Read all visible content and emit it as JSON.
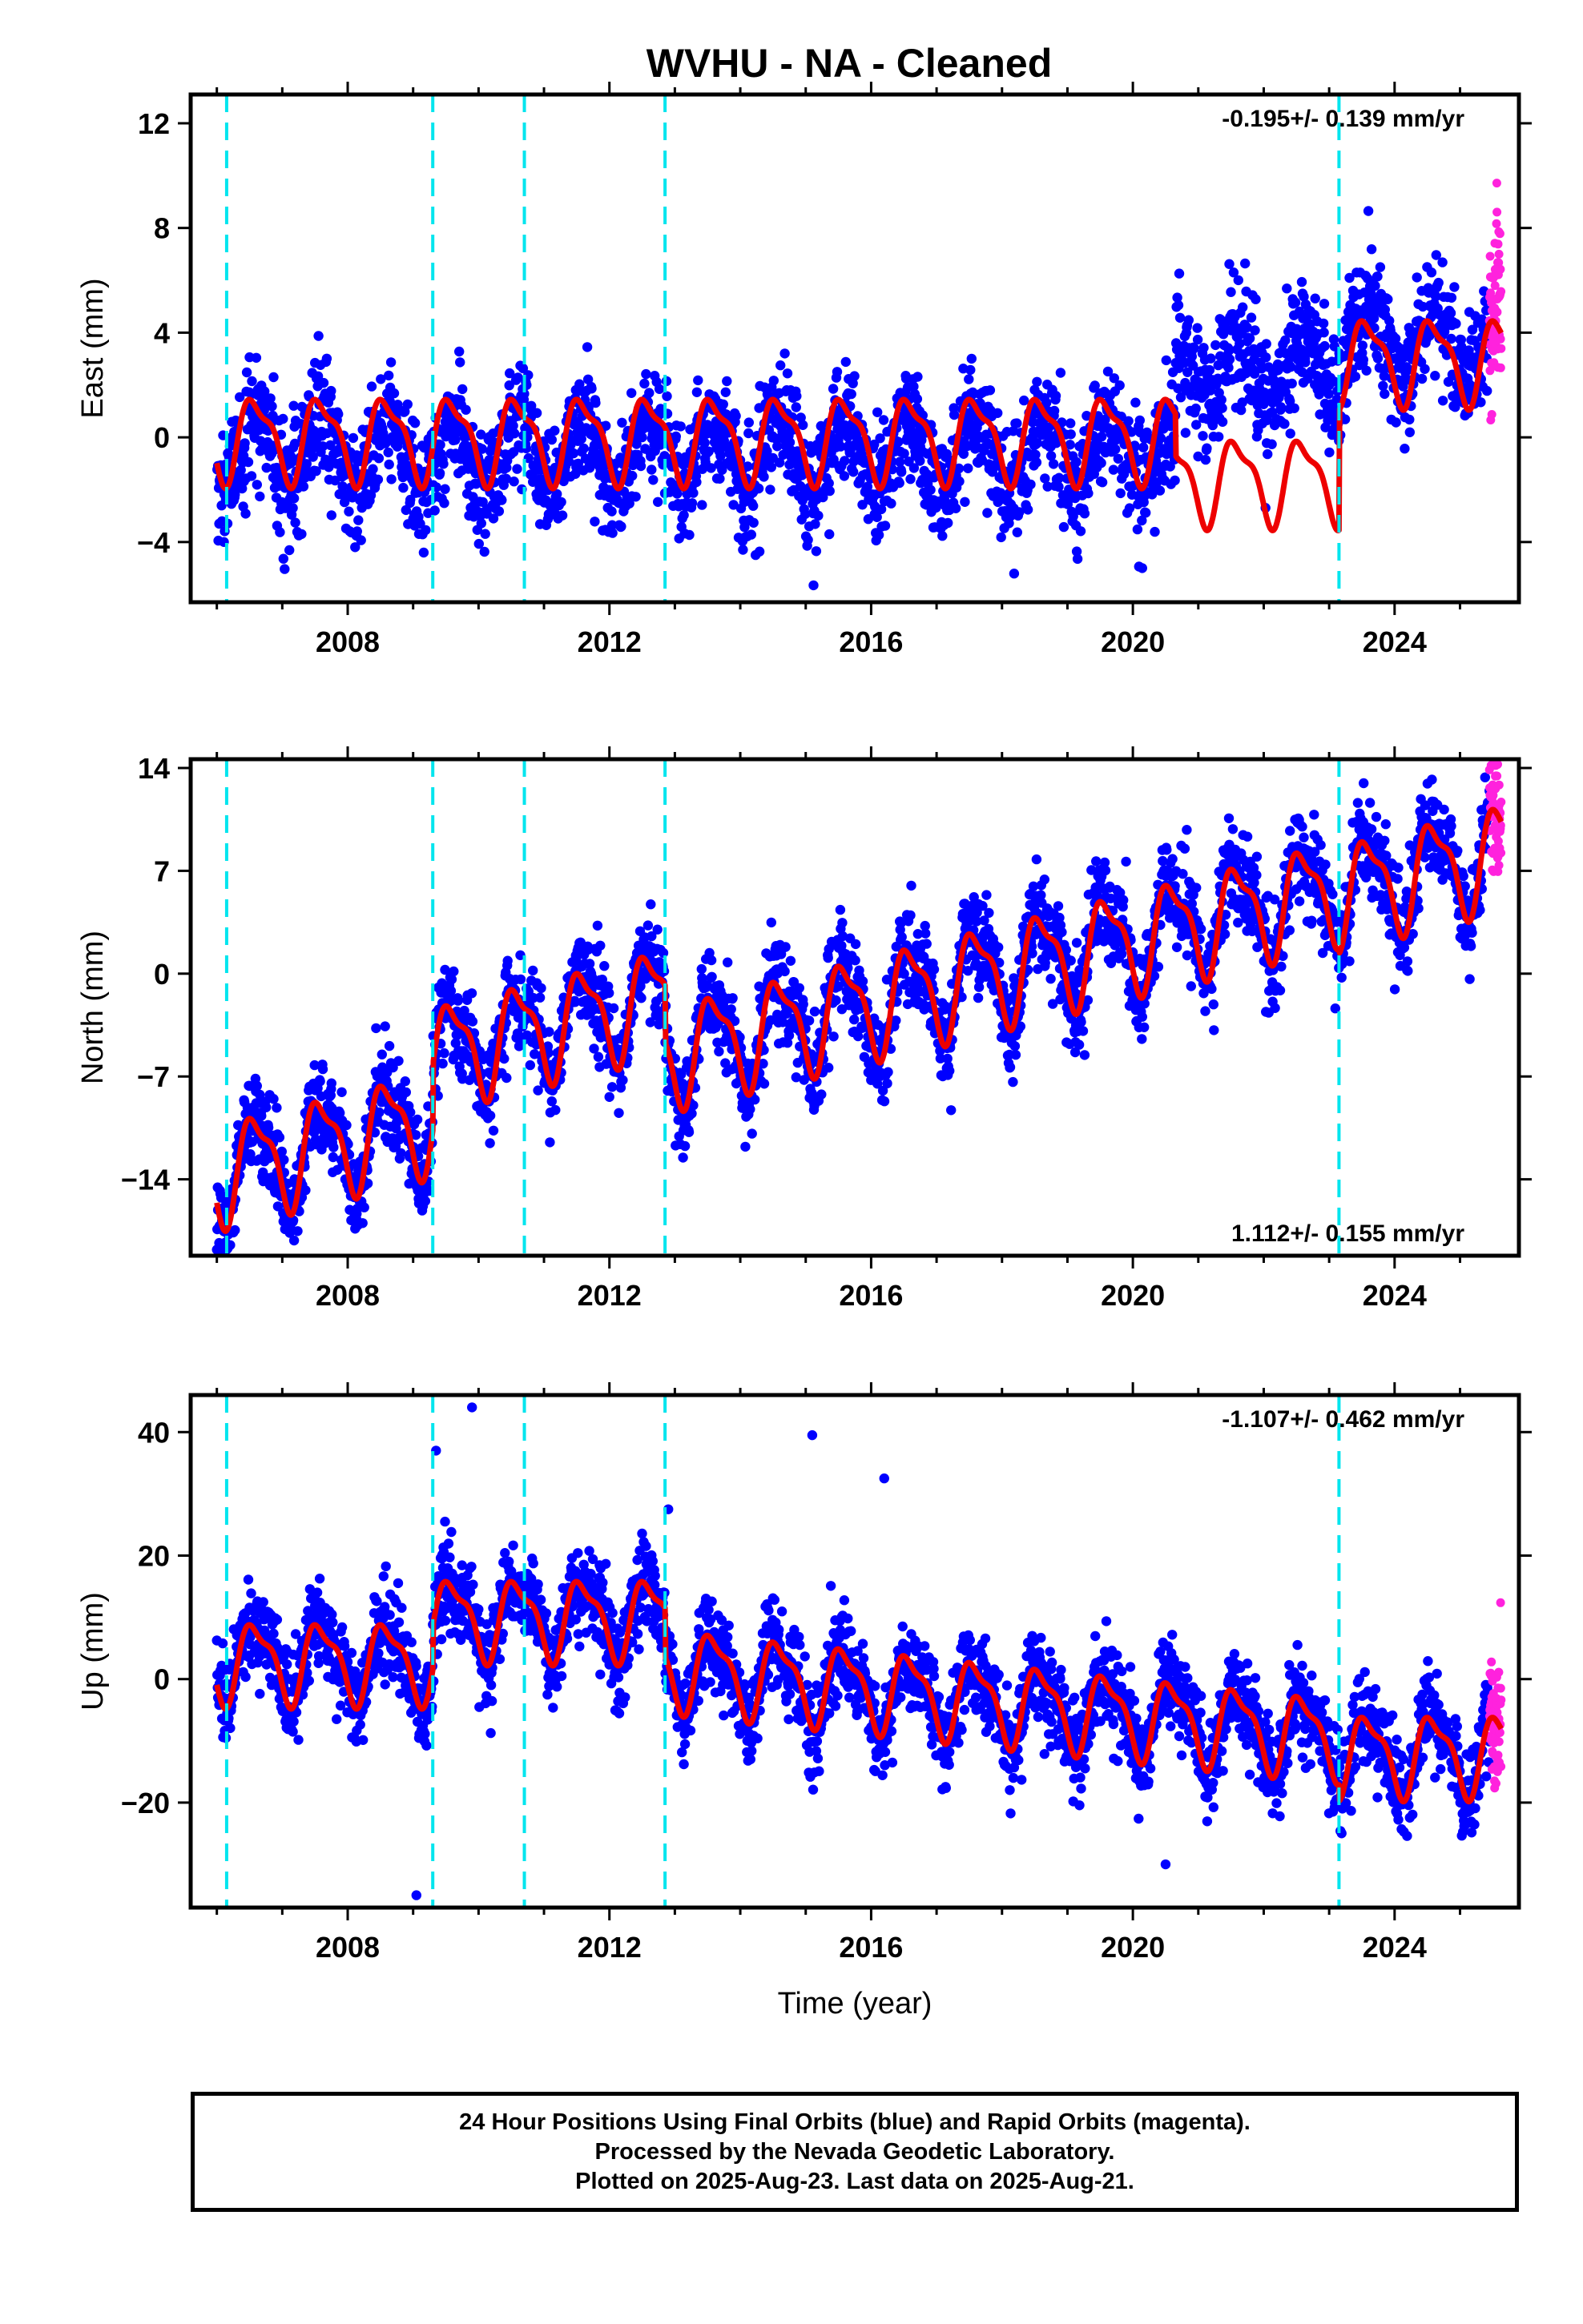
{
  "title": "WVHU  - NA - Cleaned",
  "footer": {
    "line1": "24 Hour Positions Using Final Orbits (blue) and Rapid Orbits (magenta).",
    "line2": "Processed by the Nevada Geodetic Laboratory.",
    "line3": "Plotted on 2025-Aug-23. Last data on 2025-Aug-21."
  },
  "colors": {
    "final_orbits": "#0000ff",
    "rapid_orbits": "#ff22dd",
    "model_fit": "#ee0000",
    "equipment_change": "#00e5ee",
    "axes": "#000000"
  },
  "chart_data": [
    {
      "type": "scatter",
      "component": "East",
      "ylabel": "East (mm)",
      "xlabel": "",
      "xlim": [
        2005.6,
        2025.9
      ],
      "ylim": [
        -6.3,
        13.1
      ],
      "yticks": [
        -4,
        0,
        4,
        8,
        12
      ],
      "xticks": [
        2008,
        2012,
        2016,
        2020,
        2024
      ],
      "rate_label": "-0.195+/- 0.139 mm/yr",
      "rate_position": "top-right",
      "equipment_change_epochs": [
        2006.15,
        2009.3,
        2010.7,
        2012.85,
        2023.15
      ],
      "final_orbit_span": [
        2006.0,
        2025.45
      ],
      "rapid_orbit_span": [
        2025.45,
        2025.63
      ],
      "fit_model": {
        "segments": [
          {
            "start": 2006.0,
            "end": 2020.65,
            "offset": 0.0,
            "trend": 0.0
          },
          {
            "start": 2020.65,
            "end": 2023.15,
            "offset": -1.6,
            "trend": 0.0
          },
          {
            "start": 2023.15,
            "end": 2025.63,
            "offset": 3.0,
            "trend": 0.0
          }
        ],
        "annual_amplitude": 1.5,
        "noise_sigma": 1.1,
        "note_segments_data": [
          {
            "start": 2006.0,
            "end": 2020.65,
            "level": -0.6
          },
          {
            "start": 2020.65,
            "end": 2023.15,
            "level": 2.6
          },
          {
            "start": 2023.15,
            "end": 2025.63,
            "level": 3.6
          }
        ]
      }
    },
    {
      "type": "scatter",
      "component": "North",
      "ylabel": "North (mm)",
      "xlabel": "",
      "xlim": [
        2005.6,
        2025.9
      ],
      "ylim": [
        -19.2,
        14.6
      ],
      "yticks": [
        -14,
        -7,
        0,
        7,
        14
      ],
      "xticks": [
        2008,
        2012,
        2016,
        2020,
        2024
      ],
      "rate_label": "1.112+/- 0.155 mm/yr",
      "rate_position": "bottom-right",
      "equipment_change_epochs": [
        2006.15,
        2009.3,
        2010.7,
        2012.85,
        2023.15
      ],
      "final_orbit_span": [
        2006.0,
        2025.45
      ],
      "rapid_orbit_span": [
        2025.45,
        2025.63
      ],
      "fit_model": {
        "segments": [
          {
            "start": 2006.0,
            "end": 2009.3,
            "offset": -13.5,
            "trend": 1.1
          },
          {
            "start": 2009.3,
            "end": 2012.85,
            "offset": -5.5,
            "trend": 1.1
          },
          {
            "start": 2012.85,
            "end": 2023.15,
            "offset": -5.5,
            "trend": 1.1
          },
          {
            "start": 2023.15,
            "end": 2025.63,
            "offset": 5.5,
            "trend": 1.1
          }
        ],
        "annual_amplitude": 3.2,
        "noise_sigma": 1.6
      }
    },
    {
      "type": "scatter",
      "component": "Up",
      "ylabel": "Up (mm)",
      "xlabel": "Time (year)",
      "xlim": [
        2005.6,
        2025.9
      ],
      "ylim": [
        -37,
        46
      ],
      "yticks": [
        -20,
        0,
        20,
        40
      ],
      "xticks": [
        2008,
        2012,
        2016,
        2020,
        2024
      ],
      "rate_label": "-1.107+/- 0.462 mm/yr",
      "rate_position": "top-right",
      "equipment_change_epochs": [
        2006.15,
        2009.3,
        2010.7,
        2012.85,
        2023.15
      ],
      "final_orbit_span": [
        2006.0,
        2025.45
      ],
      "rapid_orbit_span": [
        2025.45,
        2025.63
      ],
      "fit_model": {
        "segments": [
          {
            "start": 2006.0,
            "end": 2009.3,
            "offset": 3.0,
            "trend": 0.0
          },
          {
            "start": 2009.3,
            "end": 2012.85,
            "offset": 10.0,
            "trend": 0.0
          },
          {
            "start": 2012.85,
            "end": 2023.15,
            "offset": 2.0,
            "trend": -1.1
          },
          {
            "start": 2023.15,
            "end": 2025.63,
            "offset": -12.0,
            "trend": 0.0
          }
        ],
        "annual_amplitude": 6.0,
        "noise_sigma": 3.6
      },
      "outliers": [
        {
          "x": 2009.35,
          "y": 37
        },
        {
          "x": 2009.9,
          "y": 44
        },
        {
          "x": 2015.1,
          "y": 39.5
        },
        {
          "x": 2016.2,
          "y": 32.5
        },
        {
          "x": 2012.9,
          "y": 27.5
        },
        {
          "x": 2009.05,
          "y": -35
        },
        {
          "x": 2020.5,
          "y": -30
        }
      ]
    }
  ]
}
